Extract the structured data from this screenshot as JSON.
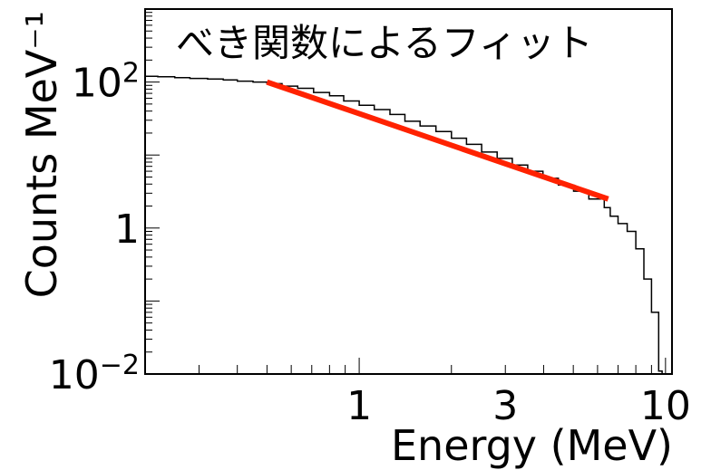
{
  "chart_data": {
    "type": "line",
    "title": "べき関数によるフィット",
    "xlabel": "Energy (MeV)",
    "ylabel": "Counts MeV⁻¹",
    "xscale": "log",
    "yscale": "log",
    "xlim": [
      0.2,
      10.5
    ],
    "ylim": [
      0.01,
      1000
    ],
    "x_ticks": [
      {
        "value": 1,
        "label": "1"
      },
      {
        "value": 3,
        "label": "3"
      },
      {
        "value": 10,
        "label": "10"
      }
    ],
    "y_ticks": [
      {
        "value": 100,
        "base": "10",
        "exp": "2"
      },
      {
        "value": 1,
        "base": "1",
        "exp": ""
      },
      {
        "value": 0.01,
        "base": "10",
        "exp": "−2"
      }
    ],
    "grid": false,
    "series": [
      {
        "kind": "histogram",
        "color": "#000000",
        "bins": [
          {
            "x0": 0.2,
            "x1": 0.22,
            "y": 120
          },
          {
            "x0": 0.22,
            "x1": 0.25,
            "y": 118
          },
          {
            "x0": 0.25,
            "x1": 0.28,
            "y": 115
          },
          {
            "x0": 0.28,
            "x1": 0.32,
            "y": 112
          },
          {
            "x0": 0.32,
            "x1": 0.36,
            "y": 110
          },
          {
            "x0": 0.36,
            "x1": 0.4,
            "y": 107
          },
          {
            "x0": 0.4,
            "x1": 0.45,
            "y": 103
          },
          {
            "x0": 0.45,
            "x1": 0.5,
            "y": 100
          },
          {
            "x0": 0.5,
            "x1": 0.56,
            "y": 95
          },
          {
            "x0": 0.56,
            "x1": 0.63,
            "y": 88
          },
          {
            "x0": 0.63,
            "x1": 0.71,
            "y": 82
          },
          {
            "x0": 0.71,
            "x1": 0.8,
            "y": 72
          },
          {
            "x0": 0.8,
            "x1": 0.89,
            "y": 65
          },
          {
            "x0": 0.89,
            "x1": 1.0,
            "y": 55
          },
          {
            "x0": 1.0,
            "x1": 1.12,
            "y": 48
          },
          {
            "x0": 1.12,
            "x1": 1.26,
            "y": 42
          },
          {
            "x0": 1.26,
            "x1": 1.41,
            "y": 36
          },
          {
            "x0": 1.41,
            "x1": 1.58,
            "y": 29
          },
          {
            "x0": 1.58,
            "x1": 1.78,
            "y": 25
          },
          {
            "x0": 1.78,
            "x1": 2.0,
            "y": 21
          },
          {
            "x0": 2.0,
            "x1": 2.24,
            "y": 17
          },
          {
            "x0": 2.24,
            "x1": 2.51,
            "y": 14
          },
          {
            "x0": 2.51,
            "x1": 2.82,
            "y": 11
          },
          {
            "x0": 2.82,
            "x1": 3.16,
            "y": 9
          },
          {
            "x0": 3.16,
            "x1": 3.55,
            "y": 7.3
          },
          {
            "x0": 3.55,
            "x1": 3.98,
            "y": 6.0
          },
          {
            "x0": 3.98,
            "x1": 4.47,
            "y": 4.8
          },
          {
            "x0": 4.47,
            "x1": 5.01,
            "y": 3.9
          },
          {
            "x0": 5.01,
            "x1": 5.62,
            "y": 3.2
          },
          {
            "x0": 5.62,
            "x1": 6.31,
            "y": 2.5
          },
          {
            "x0": 6.31,
            "x1": 6.6,
            "y": 1.9
          },
          {
            "x0": 6.6,
            "x1": 7.0,
            "y": 1.45
          },
          {
            "x0": 7.0,
            "x1": 7.5,
            "y": 1.15
          },
          {
            "x0": 7.5,
            "x1": 8.0,
            "y": 0.9
          },
          {
            "x0": 8.0,
            "x1": 8.5,
            "y": 0.52
          },
          {
            "x0": 8.5,
            "x1": 9.0,
            "y": 0.2
          },
          {
            "x0": 9.0,
            "x1": 9.5,
            "y": 0.07
          },
          {
            "x0": 9.5,
            "x1": 9.75,
            "y": 0.011
          }
        ]
      },
      {
        "kind": "fit",
        "color": "#ff2200",
        "x": [
          0.5,
          6.5
        ],
        "y": [
          100,
          2.5
        ]
      }
    ]
  }
}
